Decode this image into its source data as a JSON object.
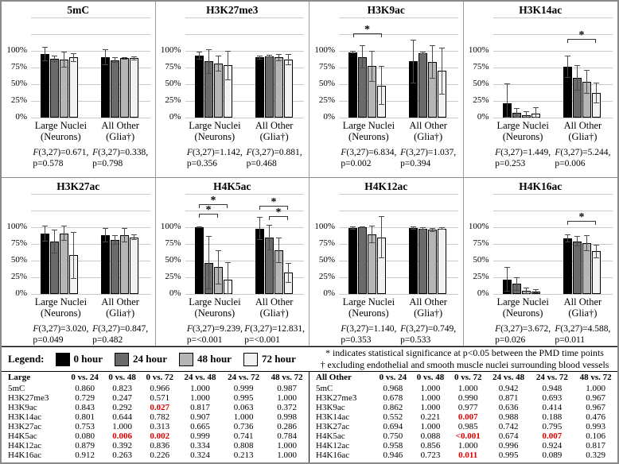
{
  "legend": {
    "label": "Legend:",
    "items": [
      {
        "label": "0 hour",
        "color": "#000000"
      },
      {
        "label": "24 hour",
        "color": "#6a6a6a"
      },
      {
        "label": "48 hour",
        "color": "#b5b5b5"
      },
      {
        "label": "72 hour",
        "color": "#f2f2f2"
      }
    ]
  },
  "notes": [
    "* indicates statistical significance at p<0.05 between the PMD time points",
    "† excluding endothelial and smooth muscle nuclei surrounding blood vessels"
  ],
  "y_ticks": [
    {
      "label": "0%",
      "value": 0
    },
    {
      "label": "25%",
      "value": 25
    },
    {
      "label": "50%",
      "value": 50
    },
    {
      "label": "75%",
      "value": 75
    },
    {
      "label": "100%",
      "value": 100
    }
  ],
  "chart_data": [
    {
      "type": "bar",
      "title": "5mC",
      "ylim": [
        0,
        150
      ],
      "categories": [
        "0 hour",
        "24 hour",
        "48 hour",
        "72 hour"
      ],
      "groups": [
        {
          "label": [
            "Large Nuclei",
            "(Neurons)"
          ],
          "values": [
            95,
            88,
            87,
            90
          ],
          "errors": [
            11,
            5,
            12,
            7
          ],
          "fstat": "F(3,27)=0.671,",
          "pval": "p=0.578",
          "brackets": []
        },
        {
          "label": [
            "All Other",
            "(Glia†)"
          ],
          "values": [
            90,
            86,
            89,
            89
          ],
          "errors": [
            12,
            4,
            2,
            3
          ],
          "fstat": "F(3,27)=0.338,",
          "pval": "p=0.798",
          "brackets": []
        }
      ]
    },
    {
      "type": "bar",
      "title": "H3K27me3",
      "ylim": [
        0,
        150
      ],
      "categories": [
        "0 hour",
        "24 hour",
        "48 hour",
        "72 hour"
      ],
      "groups": [
        {
          "label": [
            "Large Nuclei",
            "(Neurons)"
          ],
          "values": [
            93,
            84,
            81,
            78
          ],
          "errors": [
            6,
            18,
            12,
            22
          ],
          "fstat": "F(3,27)=1.142,",
          "pval": "p=0.356",
          "brackets": []
        },
        {
          "label": [
            "All Other",
            "(Glia†)"
          ],
          "values": [
            90,
            92,
            90,
            87
          ],
          "errors": [
            3,
            2,
            5,
            8
          ],
          "fstat": "F(3,27)=0.881,",
          "pval": "p=0.468",
          "brackets": []
        }
      ]
    },
    {
      "type": "bar",
      "title": "H3K9ac",
      "ylim": [
        0,
        150
      ],
      "categories": [
        "0 hour",
        "24 hour",
        "48 hour",
        "72 hour"
      ],
      "groups": [
        {
          "label": [
            "Large Nuclei",
            "(Neurons)"
          ],
          "values": [
            98,
            91,
            77,
            48
          ],
          "errors": [
            2,
            17,
            23,
            29
          ],
          "fstat": "F(3,27)=6.834,",
          "pval": "p=0.002",
          "brackets": [
            {
              "from": 0,
              "to": 3,
              "y": 120,
              "label": "*"
            }
          ]
        },
        {
          "label": [
            "All Other",
            "(Glia†)"
          ],
          "values": [
            84,
            97,
            83,
            70
          ],
          "errors": [
            33,
            2,
            25,
            35
          ],
          "fstat": "F(3,27)=1.037,",
          "pval": "p=0.394",
          "brackets": []
        }
      ]
    },
    {
      "type": "bar",
      "title": "H3K14ac",
      "ylim": [
        0,
        150
      ],
      "categories": [
        "0 hour",
        "24 hour",
        "48 hour",
        "72 hour"
      ],
      "groups": [
        {
          "label": [
            "Large Nuclei",
            "(Neurons)"
          ],
          "values": [
            21,
            7,
            4,
            6
          ],
          "errors": [
            30,
            7,
            5,
            10
          ],
          "fstat": "F(3,27)=1.449,",
          "pval": "p=0.253",
          "brackets": []
        },
        {
          "label": [
            "All Other",
            "(Glia†)"
          ],
          "values": [
            76,
            60,
            54,
            37
          ],
          "errors": [
            17,
            19,
            18,
            15
          ],
          "fstat": "F(3,27)=5.244,",
          "pval": "p=0.006",
          "brackets": [
            {
              "from": 0,
              "to": 3,
              "y": 112,
              "label": "*"
            }
          ]
        }
      ]
    },
    {
      "type": "bar",
      "title": "H3K27ac",
      "ylim": [
        0,
        150
      ],
      "categories": [
        "0 hour",
        "24 hour",
        "48 hour",
        "72 hour"
      ],
      "groups": [
        {
          "label": [
            "Large Nuclei",
            "(Neurons)"
          ],
          "values": [
            90,
            79,
            91,
            58
          ],
          "errors": [
            12,
            18,
            11,
            35
          ],
          "fstat": "F(3,27)=3.020,",
          "pval": "p=0.049",
          "brackets": []
        },
        {
          "label": [
            "All Other",
            "(Glia†)"
          ],
          "values": [
            88,
            81,
            88,
            85
          ],
          "errors": [
            11,
            7,
            11,
            4
          ],
          "fstat": "F(3,27)=0.847,",
          "pval": "p=0.482",
          "brackets": []
        }
      ]
    },
    {
      "type": "bar",
      "title": "H4K5ac",
      "ylim": [
        0,
        150
      ],
      "categories": [
        "0 hour",
        "24 hour",
        "48 hour",
        "72 hour"
      ],
      "groups": [
        {
          "label": [
            "Large Nuclei",
            "(Neurons)"
          ],
          "values": [
            100,
            47,
            40,
            22
          ],
          "errors": [
            1,
            40,
            26,
            26
          ],
          "fstat": "F(3,27)=9.239,",
          "pval": "p=<0.001",
          "brackets": [
            {
              "from": 0,
              "to": 2,
              "y": 114,
              "label": "*"
            },
            {
              "from": 0,
              "to": 3,
              "y": 129,
              "label": "*"
            }
          ]
        },
        {
          "label": [
            "All Other",
            "(Glia†)"
          ],
          "values": [
            98,
            85,
            66,
            32
          ],
          "errors": [
            17,
            19,
            19,
            15
          ],
          "fstat": "F(3,27)=12.831,",
          "pval": "p=<0.001",
          "brackets": [
            {
              "from": 1,
              "to": 3,
              "y": 111,
              "label": "*"
            },
            {
              "from": 0,
              "to": 3,
              "y": 126,
              "label": "*"
            }
          ]
        }
      ]
    },
    {
      "type": "bar",
      "title": "H4K12ac",
      "ylim": [
        0,
        150
      ],
      "categories": [
        "0 hour",
        "24 hour",
        "48 hour",
        "72 hour"
      ],
      "groups": [
        {
          "label": [
            "Large Nuclei",
            "(Neurons)"
          ],
          "values": [
            99,
            100,
            89,
            85
          ],
          "errors": [
            2,
            1,
            13,
            32
          ],
          "fstat": "F(3,27)=1.140,",
          "pval": "p=0.353",
          "brackets": []
        },
        {
          "label": [
            "All Other",
            "(Glia†)"
          ],
          "values": [
            99,
            98,
            96,
            98
          ],
          "errors": [
            2,
            2,
            3,
            2
          ],
          "fstat": "F(3,27)=0.749,",
          "pval": "p=0.533",
          "brackets": []
        }
      ]
    },
    {
      "type": "bar",
      "title": "H4K16ac",
      "ylim": [
        0,
        150
      ],
      "categories": [
        "0 hour",
        "24 hour",
        "48 hour",
        "72 hour"
      ],
      "groups": [
        {
          "label": [
            "Large Nuclei",
            "(Neurons)"
          ],
          "values": [
            22,
            15,
            5,
            4
          ],
          "errors": [
            19,
            10,
            5,
            3
          ],
          "fstat": "F(3,27)=3.672,",
          "pval": "p=0.026",
          "brackets": []
        },
        {
          "label": [
            "All Other",
            "(Glia†)"
          ],
          "values": [
            83,
            79,
            76,
            64
          ],
          "errors": [
            6,
            8,
            12,
            10
          ],
          "fstat": "F(3,27)=4.588,",
          "pval": "p=0.011",
          "brackets": [
            {
              "from": 0,
              "to": 3,
              "y": 104,
              "label": "*"
            }
          ]
        }
      ]
    }
  ],
  "tables": [
    {
      "title": "Large",
      "headers": [
        "0 vs. 24",
        "0 vs. 48",
        "0 vs. 72",
        "24 vs. 48",
        "24 vs. 72",
        "48 vs. 72"
      ],
      "rows": [
        {
          "label": "5mC",
          "values": [
            "0.860",
            "0.823",
            "0.966",
            "1.000",
            "0.999",
            "0.987"
          ],
          "sig": []
        },
        {
          "label": "H3K27me3",
          "values": [
            "0.729",
            "0.247",
            "0.571",
            "1.000",
            "0.995",
            "1.000"
          ],
          "sig": []
        },
        {
          "label": "H3K9ac",
          "values": [
            "0.843",
            "0.292",
            "0.027",
            "0.817",
            "0.063",
            "0.372"
          ],
          "sig": [
            2
          ]
        },
        {
          "label": "H3K14ac",
          "values": [
            "0.801",
            "0.644",
            "0.782",
            "0.907",
            "1.000",
            "0.998"
          ],
          "sig": []
        },
        {
          "label": "H3K27ac",
          "values": [
            "0.753",
            "1.000",
            "0.313",
            "0.665",
            "0.736",
            "0.286"
          ],
          "sig": []
        },
        {
          "label": "H4K5ac",
          "values": [
            "0.080",
            "0.006",
            "0.002",
            "0.999",
            "0.741",
            "0.784"
          ],
          "sig": [
            1,
            2
          ]
        },
        {
          "label": "H4K12ac",
          "values": [
            "0.879",
            "0.392",
            "0.836",
            "0.334",
            "0.808",
            "1.000"
          ],
          "sig": []
        },
        {
          "label": "H4K16ac",
          "values": [
            "0.912",
            "0.263",
            "0.226",
            "0.324",
            "0.213",
            "1.000"
          ],
          "sig": []
        }
      ]
    },
    {
      "title": "All Other",
      "headers": [
        "0 vs. 24",
        "0 vs. 48",
        "0 vs. 72",
        "24 vs. 48",
        "24 vs. 72",
        "48 vs. 72"
      ],
      "rows": [
        {
          "label": "5mC",
          "values": [
            "0.968",
            "1.000",
            "1.000",
            "0.942",
            "0.948",
            "1.000"
          ],
          "sig": []
        },
        {
          "label": "H3K27me3",
          "values": [
            "0.678",
            "1.000",
            "0.990",
            "0.871",
            "0.693",
            "0.967"
          ],
          "sig": []
        },
        {
          "label": "H3K9ac",
          "values": [
            "0.862",
            "1.000",
            "0.977",
            "0.636",
            "0.414",
            "0.967"
          ],
          "sig": []
        },
        {
          "label": "H3K14ac",
          "values": [
            "0.552",
            "0.221",
            "0.007",
            "0.988",
            "0.188",
            "0.476"
          ],
          "sig": [
            2
          ]
        },
        {
          "label": "H3K27ac",
          "values": [
            "0.694",
            "1.000",
            "0.985",
            "0.742",
            "0.795",
            "0.993"
          ],
          "sig": []
        },
        {
          "label": "H4K5ac",
          "values": [
            "0.750",
            "0.088",
            "<0.001",
            "0.674",
            "0.007",
            "0.106"
          ],
          "sig": [
            2,
            4
          ]
        },
        {
          "label": "H4K12ac",
          "values": [
            "0.958",
            "0.856",
            "1.000",
            "0.996",
            "0.924",
            "0.817"
          ],
          "sig": []
        },
        {
          "label": "H4K16ac",
          "values": [
            "0.946",
            "0.723",
            "0.011",
            "0.995",
            "0.089",
            "0.329"
          ],
          "sig": [
            2
          ]
        }
      ]
    }
  ]
}
